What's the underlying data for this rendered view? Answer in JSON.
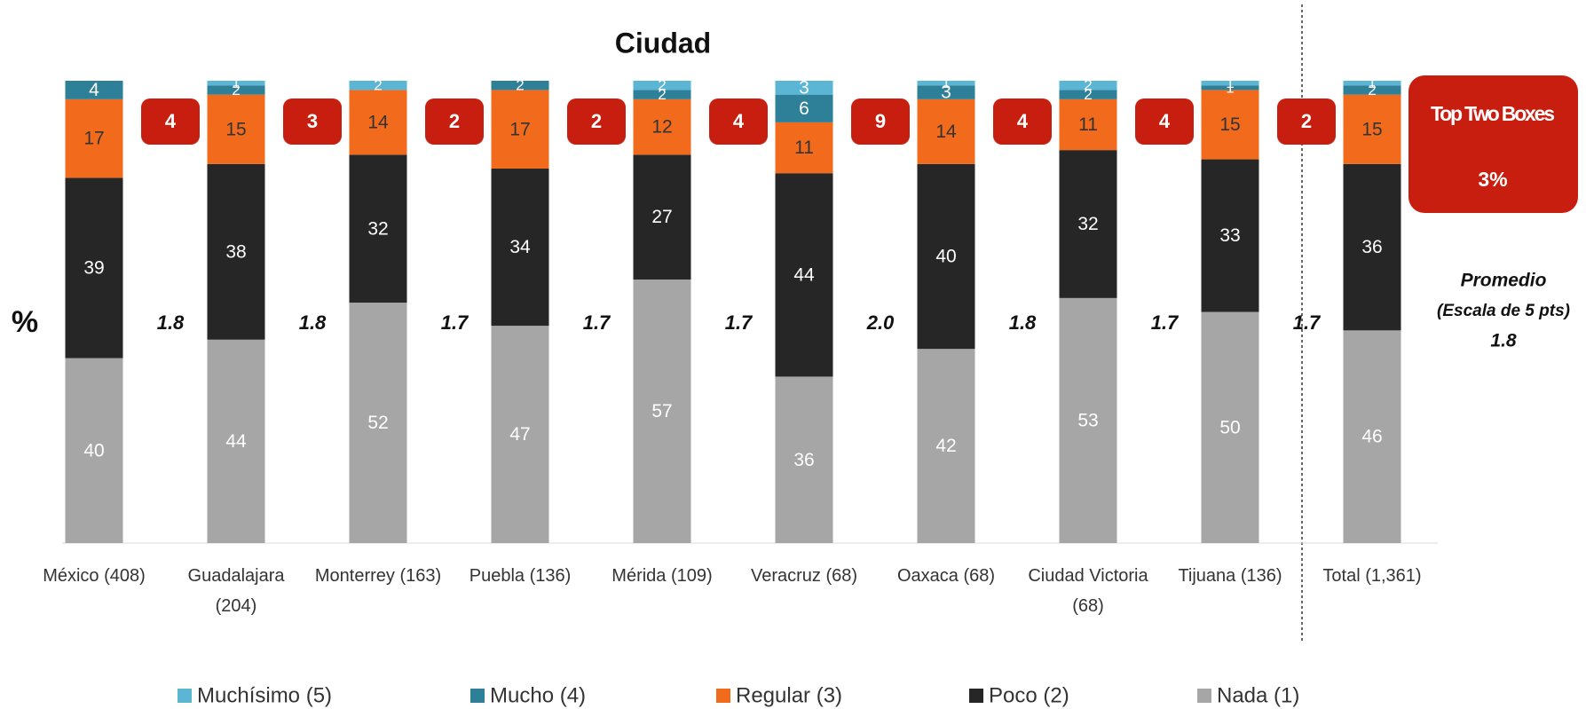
{
  "chart_data": {
    "type": "stacked_bar",
    "title": "Ciudad",
    "y_label": "%",
    "categories": [
      "México (408)",
      "Guadalajara (204)",
      "Monterrey (163)",
      "Puebla (136)",
      "Mérida (109)",
      "Veracruz (68)",
      "Oaxaca (68)",
      "Ciudad Victoria (68)",
      "Tijuana (136)",
      "Total (1,361)"
    ],
    "series": [
      {
        "name": "Muchísimo (5)",
        "color": "#5bb5d5",
        "values": [
          null,
          1,
          2,
          null,
          2,
          3,
          1,
          2,
          1,
          1
        ]
      },
      {
        "name": "Mucho (4)",
        "color": "#2e7f98",
        "values": [
          4,
          2,
          null,
          2,
          2,
          6,
          3,
          2,
          1,
          2
        ]
      },
      {
        "name": "Regular (3)",
        "color": "#f26b1d",
        "values": [
          17,
          15,
          14,
          17,
          12,
          11,
          14,
          11,
          15,
          15
        ]
      },
      {
        "name": "Poco (2)",
        "color": "#262626",
        "values": [
          39,
          38,
          32,
          34,
          27,
          44,
          40,
          32,
          33,
          36
        ]
      },
      {
        "name": "Nada (1)",
        "color": "#a6a6a6",
        "values": [
          40,
          44,
          52,
          47,
          57,
          36,
          42,
          53,
          50,
          46
        ]
      }
    ],
    "ylim": [
      0,
      100
    ],
    "top_two": {
      "label": "Top Two Boxes",
      "color": "#c81e0f",
      "values": [
        4,
        3,
        2,
        2,
        4,
        9,
        4,
        4,
        2,
        3
      ],
      "value_labels": [
        "4",
        "3",
        "2",
        "2",
        "4",
        "9",
        "4",
        "4",
        "2",
        "3%"
      ]
    },
    "promedio": {
      "label": "Promedio",
      "sublabel": "(Escala de 5 pts)",
      "values": [
        1.8,
        1.8,
        1.7,
        1.7,
        1.7,
        2.0,
        1.8,
        1.7,
        1.7,
        1.8
      ],
      "value_labels": [
        "1.8",
        "1.8",
        "1.7",
        "1.7",
        "1.7",
        "2.0",
        "1.8",
        "1.7",
        "1.7",
        "1.8"
      ]
    }
  }
}
